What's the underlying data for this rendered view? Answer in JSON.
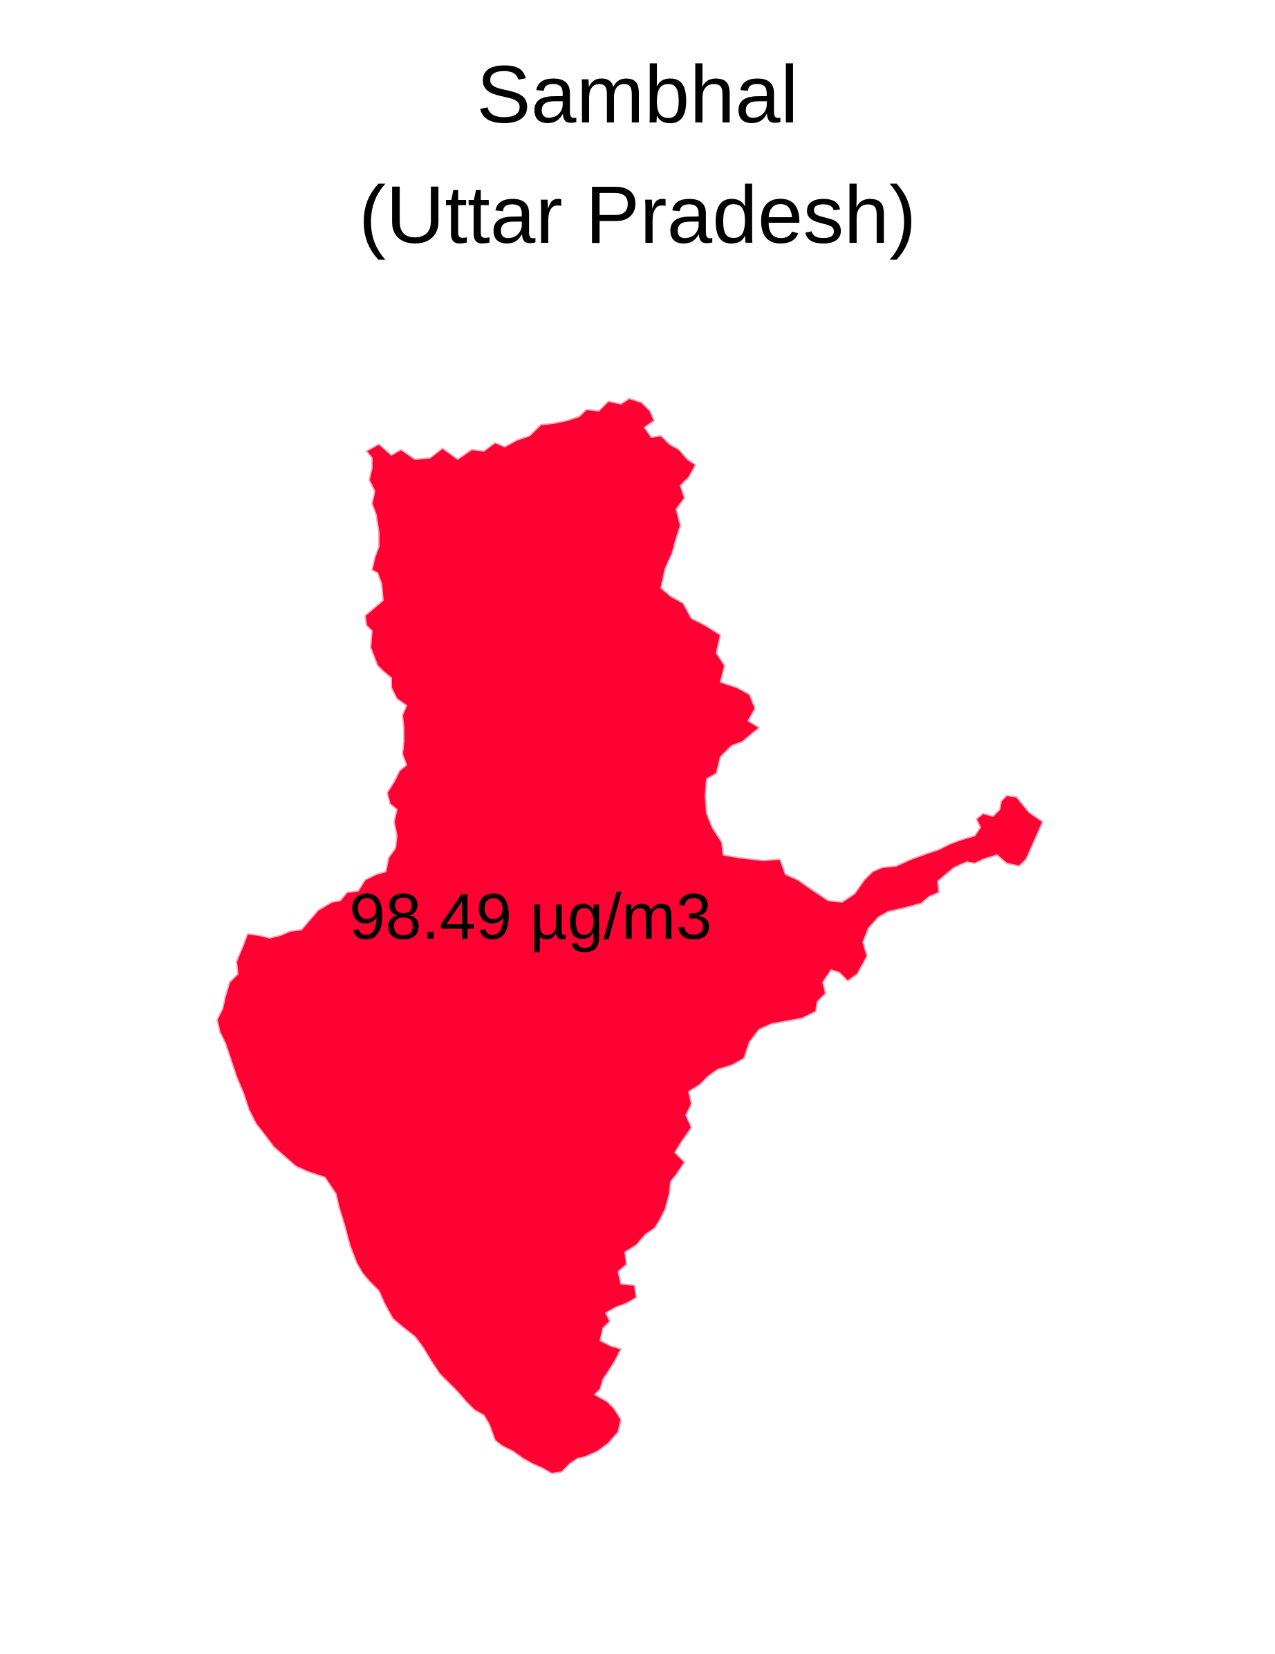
{
  "map": {
    "title_line1": "Sambhal",
    "title_line2": "(Uttar Pradesh)",
    "region_value_label": "98.49 µg/m3",
    "region_fill_color": "#ff0033",
    "region_stroke_color": "#f4a6b4",
    "background_color": "#ffffff"
  }
}
